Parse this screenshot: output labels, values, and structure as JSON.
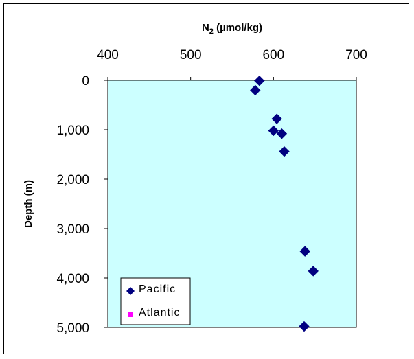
{
  "chart_data": {
    "type": "scatter",
    "title": "",
    "xlabel_main": "N",
    "xlabel_sub": "2",
    "xlabel_rest": " (µmol/kg)",
    "ylabel": "Depth (m)",
    "x_axis_position": "top",
    "y_axis_reversed": true,
    "xlim": [
      400,
      700
    ],
    "ylim": [
      0,
      5000
    ],
    "x_ticks": [
      "400",
      "500",
      "600",
      "700"
    ],
    "x_tick_values": [
      400,
      500,
      600,
      700
    ],
    "y_ticks": [
      "0",
      "1,000",
      "2,000",
      "3,000",
      "4,000",
      "5,000"
    ],
    "y_tick_values": [
      0,
      1000,
      2000,
      3000,
      4000,
      5000
    ],
    "plot_background": "#ccffff",
    "grid": false,
    "legend_position": "bottom-left",
    "series": [
      {
        "name": "Pacific",
        "color": "#000080",
        "marker": "diamond",
        "points": [
          {
            "x": 583,
            "y": 10
          },
          {
            "x": 578,
            "y": 200
          },
          {
            "x": 604,
            "y": 780
          },
          {
            "x": 600,
            "y": 1020
          },
          {
            "x": 610,
            "y": 1080
          },
          {
            "x": 613,
            "y": 1440
          },
          {
            "x": 638,
            "y": 3460
          },
          {
            "x": 648,
            "y": 3860
          },
          {
            "x": 637,
            "y": 4980
          }
        ]
      },
      {
        "name": "Atlantic",
        "color": "#ff00ff",
        "marker": "square",
        "points": []
      }
    ]
  }
}
